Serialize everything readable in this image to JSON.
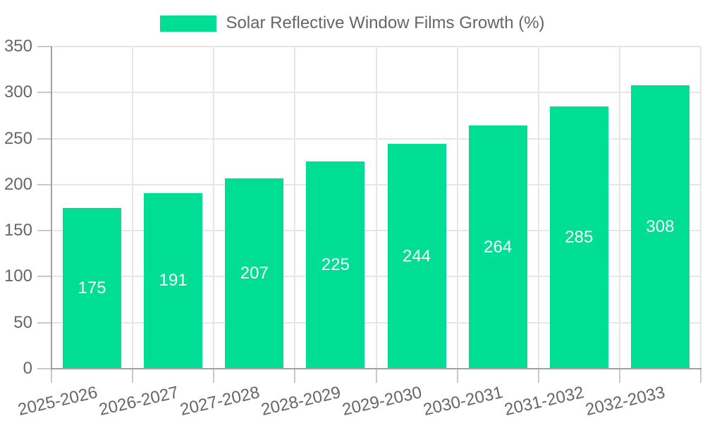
{
  "chart_data": {
    "type": "bar",
    "title": "",
    "categories": [
      "2025-2026",
      "2026-2027",
      "2027-2028",
      "2028-2029",
      "2029-2030",
      "2030-2031",
      "2031-2032",
      "2032-2033"
    ],
    "series": [
      {
        "name": "Solar Reflective Window Films Growth (%)",
        "values": [
          175,
          191,
          207,
          225,
          244,
          264,
          285,
          308
        ],
        "color": "#00DE93"
      }
    ],
    "xlabel": "",
    "ylabel": "",
    "ylim": [
      0,
      350
    ],
    "ytick_step": 50,
    "ytick_labels": [
      "0",
      "50",
      "100",
      "150",
      "200",
      "250",
      "300",
      "350"
    ],
    "grid": true,
    "legend_position": "top-center",
    "value_labels_position": "inside-center",
    "value_label_color": "#ffffff",
    "axis_text_color": "#666666",
    "grid_color": "#e6e6e6",
    "axis_line_color": "#a2a2a2",
    "tick_color": "#c9c9c9",
    "background": "#ffffff"
  }
}
